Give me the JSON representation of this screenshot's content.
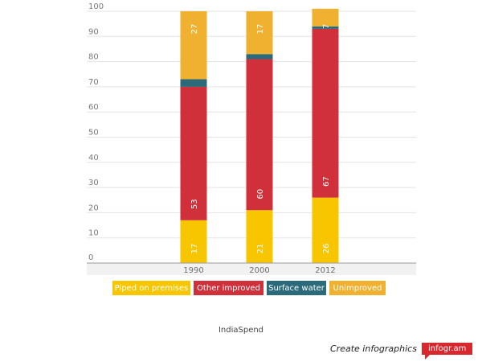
{
  "chart_data": {
    "type": "bar",
    "stacked": true,
    "categories": [
      "1990",
      "2000",
      "2012"
    ],
    "series": [
      {
        "name": "Piped on premises",
        "values": [
          17,
          21,
          26
        ],
        "color": "#f7c600"
      },
      {
        "name": "Other improved",
        "values": [
          53,
          60,
          67
        ],
        "color": "#d0303a"
      },
      {
        "name": "Surface water",
        "values": [
          3,
          2,
          1
        ],
        "color": "#2b6a7a"
      },
      {
        "name": "Unimproved",
        "values": [
          27,
          17,
          7
        ],
        "color": "#f0b030"
      }
    ],
    "data_labels": [
      [
        "17",
        "21",
        "26"
      ],
      [
        "53",
        "60",
        "67"
      ],
      [
        "",
        "",
        ""
      ],
      [
        "27",
        "17",
        "7"
      ]
    ],
    "yticks": [
      "0",
      "10",
      "20",
      "30",
      "40",
      "50",
      "60",
      "70",
      "80",
      "90",
      "100"
    ],
    "ylim": [
      0,
      100
    ],
    "grid": true,
    "legend_position": "bottom"
  },
  "source": "IndiaSpend",
  "credit": {
    "text": "Create infographics",
    "brand": "infogr.am"
  }
}
